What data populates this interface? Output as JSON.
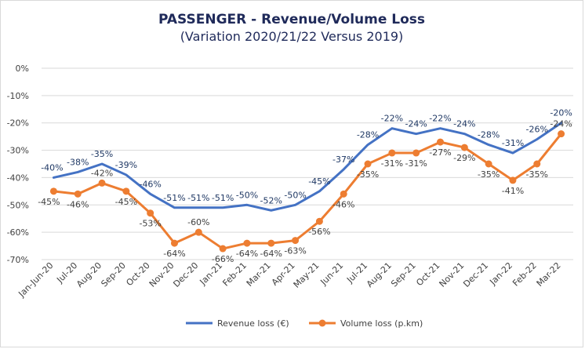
{
  "chart_data": {
    "type": "line",
    "title": "PASSENGER - Revenue/Volume Loss",
    "subtitle": "(Variation 2020/21/22 Versus 2019)",
    "categories": [
      "Jan-Jun-20",
      "Jul-20",
      "Aug-20",
      "Sep-20",
      "Oct-20",
      "Nov-20",
      "Dec-20",
      "Jan-21",
      "Feb-21",
      "Mar-21",
      "Apr-21",
      "May-21",
      "Jun-21",
      "Jul-21",
      "Aug-21",
      "Sep-21",
      "Oct-21",
      "Nov-21",
      "Dec-21",
      "Jan-22",
      "Feb-22",
      "Mar-22"
    ],
    "ylim": [
      -70,
      0
    ],
    "yticks": [
      0,
      -10,
      -20,
      -30,
      -40,
      -50,
      -60,
      -70
    ],
    "ytick_labels": [
      "0%",
      "-10%",
      "-20%",
      "-30%",
      "-40%",
      "-50%",
      "-60%",
      "-70%"
    ],
    "grid": true,
    "legend_position": "bottom",
    "series": [
      {
        "name": "Revenue loss (€)",
        "color": "#4472c4",
        "values": [
          -40,
          -38,
          -35,
          -39,
          -46,
          -51,
          -51,
          -51,
          -50,
          -52,
          -50,
          -45,
          -37,
          -28,
          -22,
          -24,
          -22,
          -24,
          -28,
          -31,
          -26,
          -20
        ],
        "labels": [
          "-40%",
          "-38%",
          "-35%",
          "-39%",
          "-46%",
          "-51%",
          "-51%",
          "-51%",
          "-50%",
          "-52%",
          "-50%",
          "-45%",
          "-37%",
          "-28%",
          "-22%",
          "-24%",
          "-22%",
          "-24%",
          "-28%",
          "-31%",
          "-26%",
          "-20%"
        ]
      },
      {
        "name": "Volume loss (p.km)",
        "color": "#ed7d31",
        "values": [
          -45,
          -46,
          -42,
          -45,
          -53,
          -64,
          -60,
          -66,
          -64,
          -64,
          -63,
          -56,
          -46,
          -35,
          -31,
          -31,
          -27,
          -29,
          -35,
          -41,
          -35,
          -24
        ],
        "labels": [
          "-45%",
          "-46%",
          "-42%",
          "-45%",
          "-53%",
          "-64%",
          "-60%",
          "-66%",
          "-64%",
          "-64%",
          "-63%",
          "-56%",
          "-46%",
          "-35%",
          "-31%",
          "-31%",
          "-27%",
          "-29%",
          "-35%",
          "-41%",
          "-35%",
          "-24%"
        ]
      }
    ]
  }
}
